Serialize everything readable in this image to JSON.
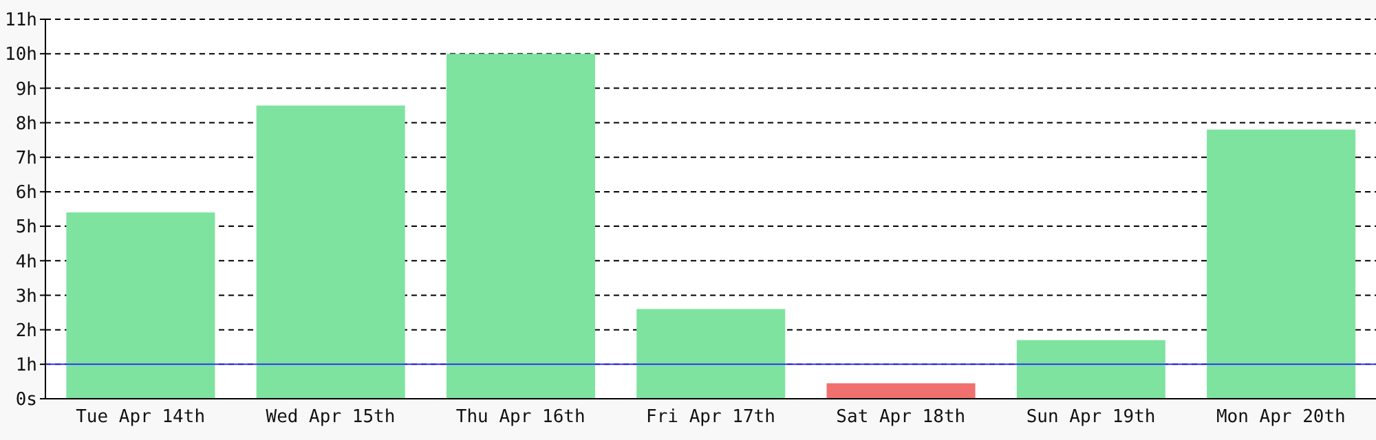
{
  "chart_data": {
    "type": "bar",
    "categories": [
      "Tue Apr 14th",
      "Wed Apr 15th",
      "Thu Apr 16th",
      "Fri Apr 17th",
      "Sat Apr 18th",
      "Sun Apr 19th",
      "Mon Apr 20th"
    ],
    "values": [
      5.4,
      8.5,
      10,
      2.6,
      0.45,
      1.7,
      7.8
    ],
    "colors": [
      "#7de39e",
      "#7de39e",
      "#7de39e",
      "#7de39e",
      "#f07070",
      "#7de39e",
      "#7de39e"
    ],
    "ylim": [
      0,
      11
    ],
    "yticks": [
      {
        "value": 0,
        "label": "0s"
      },
      {
        "value": 1,
        "label": "1h"
      },
      {
        "value": 2,
        "label": "2h"
      },
      {
        "value": 3,
        "label": "3h"
      },
      {
        "value": 4,
        "label": "4h"
      },
      {
        "value": 5,
        "label": "5h"
      },
      {
        "value": 6,
        "label": "6h"
      },
      {
        "value": 7,
        "label": "7h"
      },
      {
        "value": 8,
        "label": "8h"
      },
      {
        "value": 9,
        "label": "9h"
      },
      {
        "value": 10,
        "label": "10h"
      },
      {
        "value": 11,
        "label": "11h"
      }
    ],
    "grid": "y",
    "ref_lines": [
      {
        "axis": "y",
        "value": 1,
        "color": "#3333ff"
      }
    ]
  }
}
